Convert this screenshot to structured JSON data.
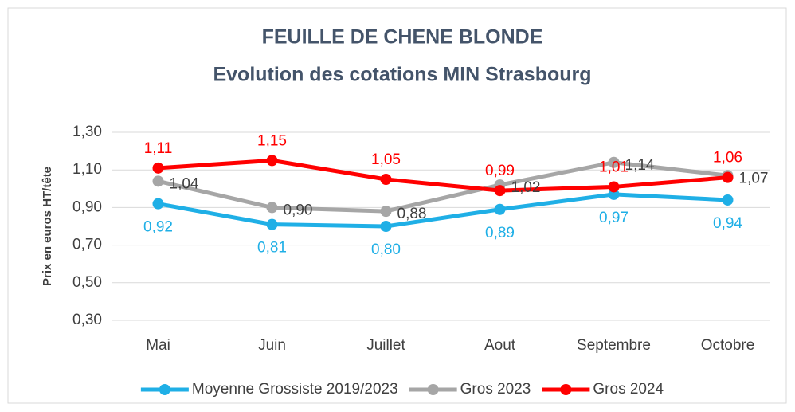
{
  "chart_data": {
    "type": "line",
    "title": "FEUILLE DE CHENE BLONDE",
    "subtitle": "Evolution des cotations MIN Strasbourg",
    "y_label": "Prix en euros HT/tête",
    "categories": [
      "Mai",
      "Juin",
      "Juillet",
      "Aout",
      "Septembre",
      "Octobre"
    ],
    "series": [
      {
        "name": "Moyenne Grossiste 2019/2023",
        "color": "#1fafe6",
        "label_color": "#1fafe6",
        "label_position": "below",
        "values": [
          0.92,
          0.81,
          0.8,
          0.89,
          0.97,
          0.94
        ],
        "value_labels": [
          "0,92",
          "0,81",
          "0,80",
          "0,89",
          "0,97",
          "0,94"
        ]
      },
      {
        "name": "Gros 2023",
        "color": "#a6a6a6",
        "label_color": "#404040",
        "label_position": "right",
        "values": [
          1.04,
          0.9,
          0.88,
          1.02,
          1.14,
          1.07
        ],
        "value_labels": [
          "1,04",
          "0,90",
          "0,88",
          "1,02",
          "1,14",
          "1,07"
        ]
      },
      {
        "name": "Gros 2024",
        "color": "#ff0000",
        "label_color": "#ff0000",
        "label_position": "above",
        "values": [
          1.11,
          1.15,
          1.05,
          0.99,
          1.01,
          1.06
        ],
        "value_labels": [
          "1,11",
          "1,15",
          "1,05",
          "0,99",
          "1,01",
          "1,06"
        ]
      }
    ],
    "ylim": [
      0.3,
      1.3
    ],
    "yticks": [
      {
        "value": 0.3,
        "label": "0,30"
      },
      {
        "value": 0.5,
        "label": "0,50"
      },
      {
        "value": 0.7,
        "label": "0,70"
      },
      {
        "value": 0.9,
        "label": "0,90"
      },
      {
        "value": 1.1,
        "label": "1,10"
      },
      {
        "value": 1.3,
        "label": "1,30"
      }
    ],
    "grid": true,
    "legend": "bottom"
  }
}
